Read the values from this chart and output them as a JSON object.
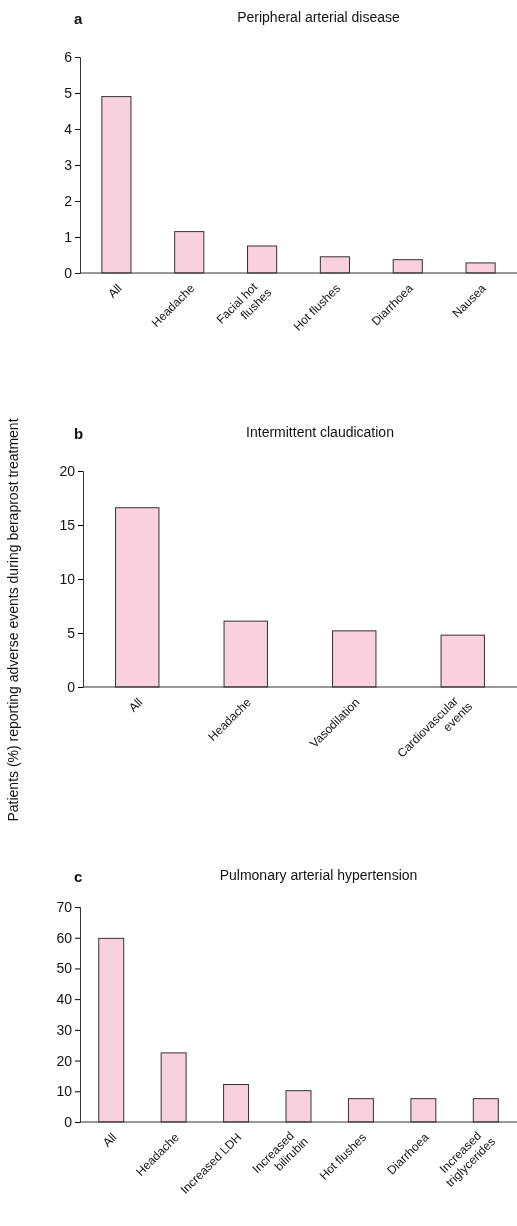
{
  "chart_data": [
    {
      "type": "bar",
      "title": "Peripheral arterial disease",
      "annotations": [
        "a"
      ],
      "categories": [
        "All",
        "Headache",
        "Facial hot flushes",
        "Hot flushes",
        "Diarrhoea",
        "Nausea"
      ],
      "values": [
        4.9,
        1.15,
        0.75,
        0.45,
        0.37,
        0.28
      ],
      "color": "#f8d0de",
      "ylim": [
        0,
        6
      ],
      "yticks": [
        0,
        1,
        2,
        3,
        4,
        5,
        6
      ]
    },
    {
      "type": "bar",
      "title": "Intermittent claudication",
      "annotations": [
        "b"
      ],
      "ylabel": "Patients (%) reporting adverse events during beraprost treatment",
      "categories": [
        "All",
        "Headache",
        "Vasodilation",
        "Cardiovascular events"
      ],
      "values": [
        16.6,
        6.1,
        5.2,
        4.8
      ],
      "color": "#f8d0de",
      "ylim": [
        0,
        20
      ],
      "yticks": [
        0,
        5,
        10,
        15,
        20
      ]
    },
    {
      "type": "bar",
      "title": "Pulmonary arterial hypertension",
      "annotations": [
        "c"
      ],
      "categories": [
        "All",
        "Headache",
        "Increased LDH",
        "Increased bilirubin",
        "Hot flushes",
        "Diarrhoea",
        "Increased triglycerides"
      ],
      "values": [
        59.8,
        22.5,
        12.2,
        10.2,
        7.6,
        7.6,
        7.6
      ],
      "color": "#f8d0de",
      "ylim": [
        0,
        70
      ],
      "yticks": [
        0,
        10,
        20,
        30,
        40,
        50,
        60,
        70
      ]
    }
  ]
}
